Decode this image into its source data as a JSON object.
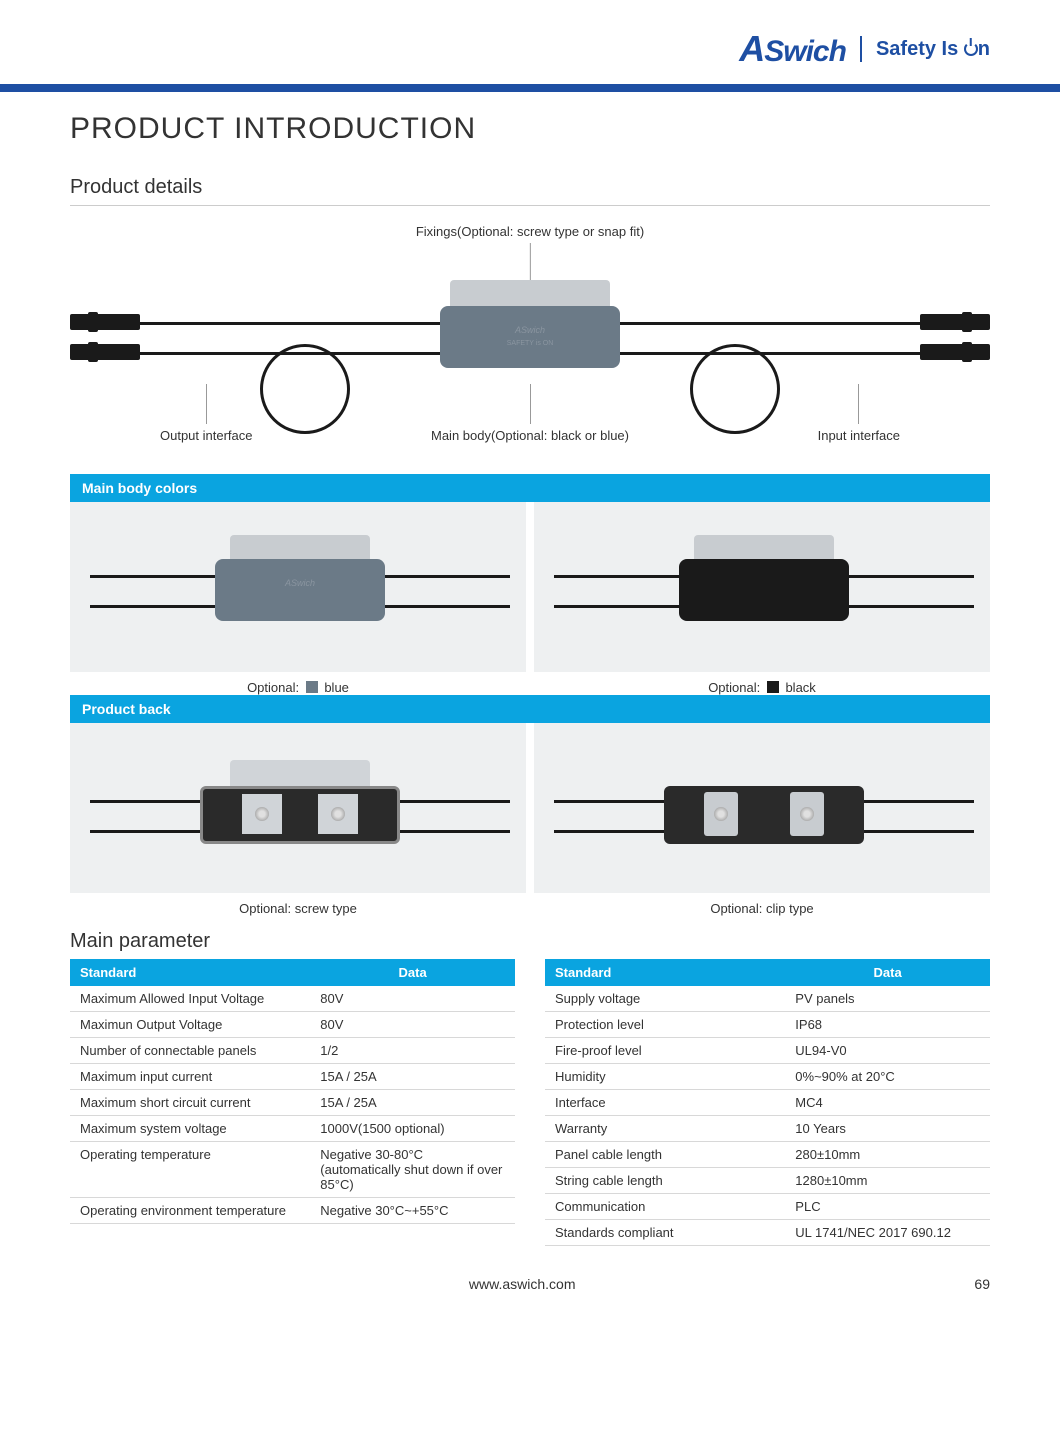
{
  "header": {
    "logo_prefix": "A",
    "logo_rest": "Swich",
    "tagline_prefix": "Safety Is ",
    "tagline_suffix": "n"
  },
  "title": "PRODUCT INTRODUCTION",
  "section_details": "Product details",
  "diagram": {
    "fixings_label": "Fixings(Optional: screw type or snap fit)",
    "output_label": "Output interface",
    "mainbody_label": "Main body(Optional: black or blue)",
    "input_label": "Input interface"
  },
  "colors_header": "Main body colors",
  "colors": {
    "blue_caption_prefix": "Optional: ",
    "blue_caption_suffix": " blue",
    "black_caption_prefix": "Optional: ",
    "black_caption_suffix": " black"
  },
  "back_header": "Product back",
  "back": {
    "screw_caption": "Optional: screw type",
    "clip_caption": "Optional: clip type"
  },
  "params_header": "Main parameter",
  "table_headers": {
    "standard": "Standard",
    "data": "Data"
  },
  "params_left": [
    {
      "k": "Maximum Allowed Input Voltage",
      "v": "80V"
    },
    {
      "k": "Maximun Output Voltage",
      "v": "80V"
    },
    {
      "k": "Number of connectable panels",
      "v": "1/2"
    },
    {
      "k": "Maximum input current",
      "v": "15A / 25A"
    },
    {
      "k": "Maximum short circuit current",
      "v": "15A / 25A"
    },
    {
      "k": "Maximum system voltage",
      "v": "1000V(1500 optional)"
    },
    {
      "k": "Operating temperature",
      "v": "Negative 30-80°C (automatically shut down if over 85°C)"
    },
    {
      "k": "Operating environment temperature",
      "v": "Negative 30°C~+55°C"
    }
  ],
  "params_right": [
    {
      "k": "Supply voltage",
      "v": "PV panels"
    },
    {
      "k": "Protection level",
      "v": "IP68"
    },
    {
      "k": "Fire-proof level",
      "v": "UL94-V0"
    },
    {
      "k": "Humidity",
      "v": "0%~90% at 20°C"
    },
    {
      "k": "Interface",
      "v": "MC4"
    },
    {
      "k": "Warranty",
      "v": "10 Years"
    },
    {
      "k": "Panel cable length",
      "v": "280±10mm"
    },
    {
      "k": "String cable length",
      "v": "1280±10mm"
    },
    {
      "k": "Communication",
      "v": "PLC"
    },
    {
      "k": "Standards compliant",
      "v": "UL 1741/NEC 2017 690.12"
    }
  ],
  "footer": {
    "url": "www.aswich.com",
    "page": "69"
  },
  "colors_palette": {
    "brand_blue": "#1e4fa3",
    "accent_blue": "#0aa4e0",
    "body_blue": "#6b7a87",
    "body_black": "#1a1a1a",
    "panel_gray": "#eef0f1",
    "bracket_gray": "#c8ccd0"
  }
}
